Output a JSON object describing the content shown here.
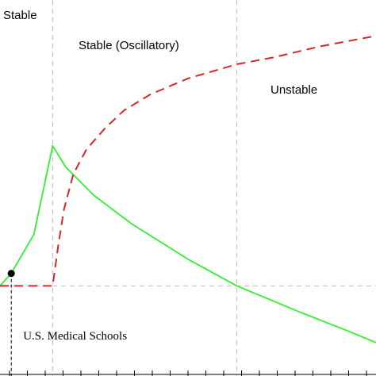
{
  "chart_data": {
    "type": "line",
    "title": "",
    "xlabel": "",
    "ylabel": "",
    "xlim": [
      0,
      100
    ],
    "ylim": [
      0,
      100
    ],
    "grid": false,
    "regions": [
      {
        "label": "Stable"
      },
      {
        "label": "Stable (Oscillatory)"
      },
      {
        "label": "Unstable"
      }
    ],
    "region_boundaries_x": [
      14,
      63
    ],
    "reference_y": 20.5,
    "series": [
      {
        "style": "solid",
        "color": "#33ee33",
        "points": [
          [
            0,
            20.5
          ],
          [
            3,
            24
          ],
          [
            9,
            35
          ],
          [
            14,
            60
          ],
          [
            17.5,
            54
          ],
          [
            25,
            46
          ],
          [
            35,
            38
          ],
          [
            50,
            28
          ],
          [
            63,
            20.5
          ],
          [
            80,
            13
          ],
          [
            92,
            8
          ],
          [
            100,
            4.5
          ]
        ]
      },
      {
        "style": "dashed",
        "color": "#d62728",
        "points": [
          [
            0,
            20.5
          ],
          [
            14,
            20.5
          ],
          [
            15.5,
            32
          ],
          [
            17,
            42
          ],
          [
            19.5,
            52
          ],
          [
            23,
            59
          ],
          [
            28,
            65
          ],
          [
            33,
            70
          ],
          [
            40,
            74.5
          ],
          [
            50,
            79
          ],
          [
            63,
            83
          ],
          [
            73,
            85
          ],
          [
            85,
            88
          ],
          [
            100,
            91
          ]
        ]
      }
    ],
    "annotations": [
      {
        "label": "U.S. Medical Schools",
        "x": 3,
        "y": 24
      }
    ],
    "x_ticks": 21
  }
}
